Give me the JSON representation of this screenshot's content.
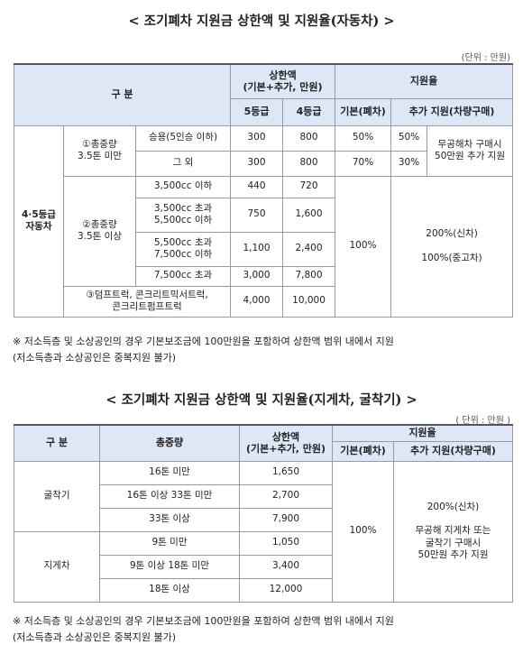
{
  "title1": "< 조기폐차 지원금 상한액 및 지원율(자동차) >",
  "unit1": "(단위 : 만원)",
  "t1": {
    "h_group": "구 분",
    "h_limit": "상한액\n(기본+추가, 만원)",
    "h_rate": "지원율",
    "h_g5": "5등급",
    "h_g4": "4등급",
    "h_basic": "기본(폐차)",
    "h_extra": "추가 지원(차량구매)",
    "row_label": "4·5등급\n자동차",
    "cat1": "①총중량\n3.5톤 미만",
    "cat2": "②총중량\n3.5톤 이상",
    "cat3": "③덤프트럭, 콘크리트믹서트럭,\n콘크리트펌프트럭",
    "r1": {
      "sub": "승용(5인승 이하)",
      "g5": "300",
      "g4": "800",
      "basic": "50%",
      "extra": "50%"
    },
    "r2": {
      "sub": "그 외",
      "g5": "300",
      "g4": "800",
      "basic": "70%",
      "extra": "30%"
    },
    "r12_note": "무공해차 구매시\n50만원 추가 지원",
    "r3": {
      "sub": "3,500cc 이하",
      "g5": "440",
      "g4": "720"
    },
    "r4": {
      "sub": "3,500cc 초과\n5,500cc 이하",
      "g5": "750",
      "g4": "1,600"
    },
    "r5": {
      "sub": "5,500cc 초과\n7,500cc 이하",
      "g5": "1,100",
      "g4": "2,400"
    },
    "r6": {
      "sub": "7,500cc 초과",
      "g5": "3,000",
      "g4": "7,800"
    },
    "r7": {
      "g5": "4,000",
      "g4": "10,000"
    },
    "merged_basic": "100%",
    "merged_extra": "200%(신차)\n\n100%(중고차)"
  },
  "note1": "※ 저소득층 및 소상공인의 경우 기본보조금에 100만원을 포함하여 상한액 범위 내에서 지원\n(저소득층과 소상공인은 중복지원 불가)",
  "title2": "< 조기폐차 지원금 상한액 및 지원율(지게차, 굴착기) >",
  "unit2": "( 단위 : 만원 )",
  "t2": {
    "h_group": "구 분",
    "h_weight": "총중량",
    "h_limit": "상한액\n(기본+추가, 만원)",
    "h_rate": "지원율",
    "h_basic": "기본(폐차)",
    "h_extra": "추가 지원(차량구매)",
    "grp1": "굴착기",
    "grp2": "지게차",
    "rows": [
      {
        "w": "16톤 미만",
        "v": "1,650"
      },
      {
        "w": "16톤 이상 33톤 미만",
        "v": "2,700"
      },
      {
        "w": "33톤 이상",
        "v": "7,900"
      },
      {
        "w": "9톤 미만",
        "v": "1,050"
      },
      {
        "w": "9톤 이상 18톤 미만",
        "v": "3,400"
      },
      {
        "w": "18톤 이상",
        "v": "12,000"
      }
    ],
    "basic": "100%",
    "extra": "200%(신차)\n\n무공해 지게차 또는\n굴착기 구매시\n50만원 추가 지원"
  },
  "note2": "※ 저소득층 및 소상공인의 경우 기본보조금에 100만원을 포함하여 상한액 범위 내에서 지원\n(저소득층과 소상공인은 중복지원 불가)"
}
